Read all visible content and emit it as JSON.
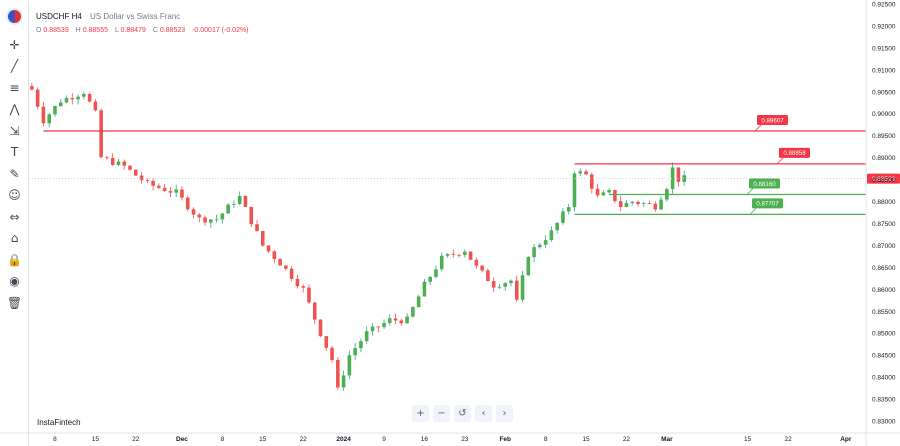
{
  "header": {
    "symbol": "USDCHF",
    "timeframe": "H4",
    "description": "US Dollar vs Swiss Franc",
    "open": "0.88539",
    "high": "0.88555",
    "low": "0.88479",
    "close": "0.88523",
    "change": "-0.00017 (-0.02%)"
  },
  "ohlc_labels": {
    "o": "O",
    "h": "H",
    "l": "L",
    "c": "C"
  },
  "watermark": "InstaFintech",
  "toolbar": [
    "crosshair-icon",
    "trendline-icon",
    "fib-icon",
    "pattern-icon",
    "projection-icon",
    "text-icon",
    "brush-icon",
    "emoji-icon",
    "measure-icon",
    "magnet-icon",
    "lock-icon",
    "eye-icon",
    "trash-icon"
  ],
  "nav": [
    "+",
    "−",
    "↺",
    "‹",
    "›"
  ],
  "colors": {
    "up": "#26a69a",
    "up_fill": "#4caf50",
    "down": "#ef5350",
    "resistance": "#f23645",
    "support": "#4caf50",
    "price_line": "#d1d4dc",
    "axis_text": "#131722"
  },
  "chart_data": {
    "type": "candlestick",
    "ylim": [
      0.8275,
      0.925
    ],
    "y_ticks": [
      "0.92500",
      "0.92000",
      "0.91500",
      "0.91000",
      "0.90500",
      "0.90000",
      "0.89500",
      "0.89000",
      "0.88500",
      "0.88000",
      "0.87500",
      "0.87000",
      "0.86500",
      "0.86000",
      "0.85500",
      "0.85000",
      "0.84500",
      "0.84000",
      "0.83500",
      "0.83000"
    ],
    "x_ticks": [
      "8",
      "15",
      "22",
      "Dec",
      "8",
      "15",
      "22",
      "2024",
      "9",
      "16",
      "23",
      "Feb",
      "8",
      "15",
      "22",
      "Mar",
      "15",
      "22",
      "Apr"
    ],
    "x_tick_index": [
      4,
      11,
      18,
      26,
      33,
      40,
      47,
      54,
      61,
      68,
      75,
      82,
      89,
      96,
      103,
      110,
      124,
      131,
      141
    ],
    "total_slots": 145,
    "last_price": "0.88523",
    "last_price_value": 0.88523,
    "levels": [
      {
        "label": "0.89607",
        "value": 0.89607,
        "kind": "resistance",
        "from_slot": 2
      },
      {
        "label": "0.88858",
        "value": 0.88858,
        "kind": "resistance",
        "from_slot": 94
      },
      {
        "label": "0.88160",
        "value": 0.8816,
        "kind": "support",
        "from_slot": 100
      },
      {
        "label": "0.87707",
        "value": 0.87707,
        "kind": "support",
        "from_slot": 94
      }
    ],
    "path_points": [
      [
        0,
        0.9055
      ],
      [
        2,
        0.8985
      ],
      [
        5,
        0.903
      ],
      [
        9,
        0.905
      ],
      [
        11,
        0.9
      ],
      [
        12,
        0.89
      ],
      [
        16,
        0.888
      ],
      [
        20,
        0.884
      ],
      [
        25,
        0.882
      ],
      [
        29,
        0.876
      ],
      [
        32,
        0.876
      ],
      [
        35,
        0.88
      ],
      [
        36,
        0.881
      ],
      [
        40,
        0.87
      ],
      [
        43,
        0.866
      ],
      [
        47,
        0.86
      ],
      [
        50,
        0.85
      ],
      [
        52,
        0.844
      ],
      [
        53,
        0.837
      ],
      [
        55,
        0.845
      ],
      [
        58,
        0.85
      ],
      [
        62,
        0.853
      ],
      [
        65,
        0.853
      ],
      [
        68,
        0.861
      ],
      [
        71,
        0.867
      ],
      [
        75,
        0.869
      ],
      [
        77,
        0.865
      ],
      [
        80,
        0.861
      ],
      [
        83,
        0.862
      ],
      [
        84,
        0.857
      ],
      [
        86,
        0.868
      ],
      [
        90,
        0.873
      ],
      [
        93,
        0.879
      ],
      [
        94,
        0.887
      ],
      [
        96,
        0.886
      ],
      [
        98,
        0.881
      ],
      [
        100,
        0.882
      ],
      [
        102,
        0.879
      ],
      [
        104,
        0.88
      ],
      [
        108,
        0.879
      ],
      [
        110,
        0.8835
      ],
      [
        111,
        0.8875
      ],
      [
        112,
        0.885
      ],
      [
        113,
        0.8852
      ]
    ]
  }
}
